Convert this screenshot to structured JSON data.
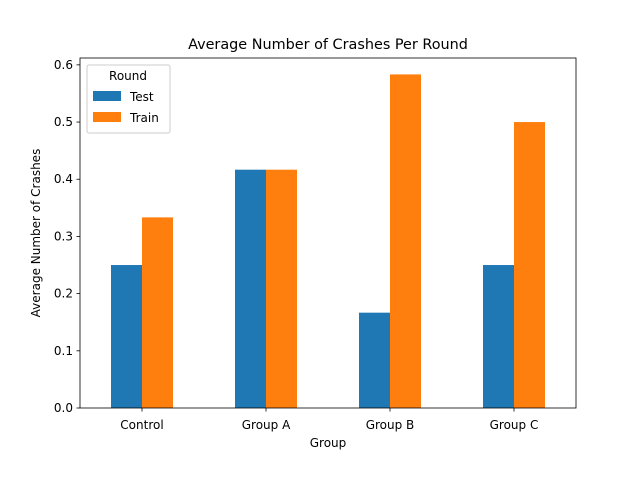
{
  "chart_data": {
    "type": "bar",
    "title": "Average Number of Crashes Per Round",
    "xlabel": "Group",
    "ylabel": "Average Number of Crashes",
    "categories": [
      "Control",
      "Group A",
      "Group B",
      "Group C"
    ],
    "series": [
      {
        "name": "Test",
        "color": "#1f77b4",
        "values": [
          0.25,
          0.4167,
          0.1667,
          0.25
        ]
      },
      {
        "name": "Train",
        "color": "#ff7f0e",
        "values": [
          0.3333,
          0.4167,
          0.5833,
          0.5
        ]
      }
    ],
    "ylim": [
      0,
      0.612
    ],
    "yticks": [
      "0.0",
      "0.1",
      "0.2",
      "0.3",
      "0.4",
      "0.5",
      "0.6"
    ],
    "legend": {
      "title": "Round",
      "placement": "top-left"
    },
    "grid": false
  }
}
